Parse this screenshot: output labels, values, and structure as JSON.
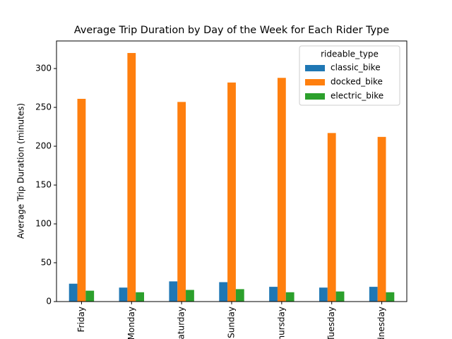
{
  "chart_data": {
    "type": "bar",
    "title": "Average Trip Duration by Day of the Week for Each Rider Type",
    "y_label": "Average Trip Duration (minutes)",
    "categories": [
      "Friday",
      "Monday",
      "Saturday",
      "Sunday",
      "Thursday",
      "Tuesday",
      "Wednesday"
    ],
    "series": [
      {
        "name": "classic_bike",
        "color": "#1f77b4",
        "values": [
          23,
          18,
          26,
          25,
          19,
          18,
          19
        ]
      },
      {
        "name": "docked_bike",
        "color": "#ff7f0e",
        "values": [
          261,
          320,
          257,
          282,
          288,
          217,
          212
        ]
      },
      {
        "name": "electric_bike",
        "color": "#2ca02c",
        "values": [
          14,
          12,
          15,
          16,
          12,
          13,
          12
        ]
      }
    ],
    "legend_title": "rideable_type",
    "legend": "upper right",
    "ylim": [
      0,
      335.5
    ],
    "yticks": [
      0,
      50,
      100,
      150,
      200,
      250,
      300
    ]
  }
}
